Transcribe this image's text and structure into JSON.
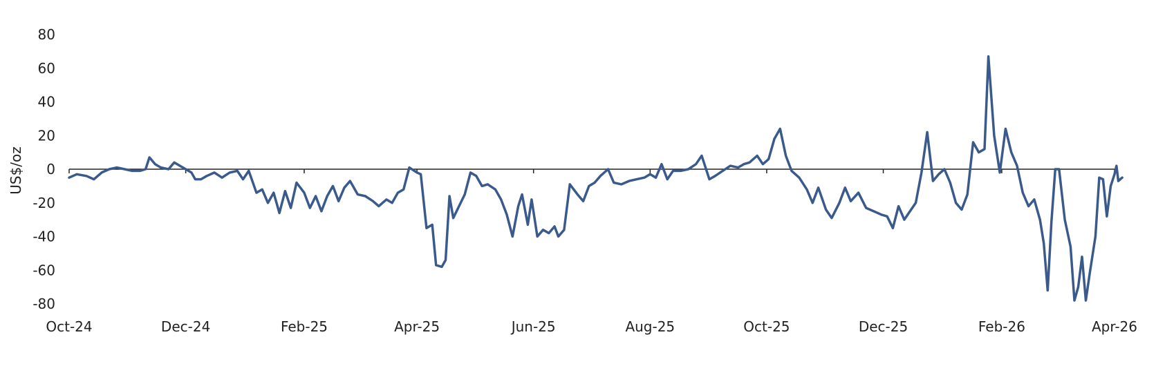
{
  "chart_data": {
    "type": "line",
    "title": "",
    "xlabel": "",
    "ylabel": "US$/oz",
    "ylim": [
      -80,
      80
    ],
    "yticks": [
      80,
      60,
      40,
      20,
      0,
      -20,
      -40,
      -60,
      -80
    ],
    "xlim": [
      "2024-10-01",
      "2026-04-01"
    ],
    "xticks": [
      {
        "date": "2024-10-01",
        "label": "Oct-24"
      },
      {
        "date": "2024-12-01",
        "label": "Dec-24"
      },
      {
        "date": "2025-02-01",
        "label": "Feb-25"
      },
      {
        "date": "2025-04-01",
        "label": "Apr-25"
      },
      {
        "date": "2025-06-01",
        "label": "Jun-25"
      },
      {
        "date": "2025-08-01",
        "label": "Aug-25"
      },
      {
        "date": "2025-10-01",
        "label": "Oct-25"
      },
      {
        "date": "2025-12-01",
        "label": "Dec-25"
      },
      {
        "date": "2026-02-01",
        "label": "Feb-26"
      },
      {
        "date": "2026-04-01",
        "label": "Apr-26"
      }
    ],
    "grid": false,
    "legend": "none",
    "line_color": "#3a5a8c",
    "zero_line_color": "#222222",
    "series": [
      {
        "points": [
          [
            "2024-10-01",
            -5
          ],
          [
            "2024-10-05",
            -3
          ],
          [
            "2024-10-10",
            -4
          ],
          [
            "2024-10-14",
            -6
          ],
          [
            "2024-10-18",
            -2
          ],
          [
            "2024-10-22",
            0
          ],
          [
            "2024-10-26",
            1
          ],
          [
            "2024-10-30",
            0
          ],
          [
            "2024-11-03",
            -1
          ],
          [
            "2024-11-07",
            -1
          ],
          [
            "2024-11-10",
            0
          ],
          [
            "2024-11-12",
            7
          ],
          [
            "2024-11-15",
            3
          ],
          [
            "2024-11-18",
            1
          ],
          [
            "2024-11-22",
            0
          ],
          [
            "2024-11-25",
            4
          ],
          [
            "2024-11-28",
            2
          ],
          [
            "2024-12-01",
            0
          ],
          [
            "2024-12-04",
            -2
          ],
          [
            "2024-12-06",
            -6
          ],
          [
            "2024-12-09",
            -6
          ],
          [
            "2024-12-12",
            -4
          ],
          [
            "2024-12-16",
            -2
          ],
          [
            "2024-12-20",
            -5
          ],
          [
            "2024-12-24",
            -2
          ],
          [
            "2024-12-28",
            -1
          ],
          [
            "2024-12-31",
            -6
          ],
          [
            "2025-01-03",
            -1
          ],
          [
            "2025-01-07",
            -14
          ],
          [
            "2025-01-10",
            -12
          ],
          [
            "2025-01-13",
            -20
          ],
          [
            "2025-01-16",
            -14
          ],
          [
            "2025-01-19",
            -26
          ],
          [
            "2025-01-22",
            -13
          ],
          [
            "2025-01-25",
            -23
          ],
          [
            "2025-01-28",
            -8
          ],
          [
            "2025-02-01",
            -14
          ],
          [
            "2025-02-04",
            -23
          ],
          [
            "2025-02-07",
            -16
          ],
          [
            "2025-02-10",
            -25
          ],
          [
            "2025-02-13",
            -16
          ],
          [
            "2025-02-16",
            -10
          ],
          [
            "2025-02-19",
            -19
          ],
          [
            "2025-02-22",
            -11
          ],
          [
            "2025-02-25",
            -7
          ],
          [
            "2025-03-01",
            -15
          ],
          [
            "2025-03-05",
            -16
          ],
          [
            "2025-03-09",
            -19
          ],
          [
            "2025-03-12",
            -22
          ],
          [
            "2025-03-16",
            -18
          ],
          [
            "2025-03-19",
            -20
          ],
          [
            "2025-03-22",
            -14
          ],
          [
            "2025-03-25",
            -12
          ],
          [
            "2025-03-28",
            1
          ],
          [
            "2025-04-01",
            -2
          ],
          [
            "2025-04-03",
            -3
          ],
          [
            "2025-04-06",
            -35
          ],
          [
            "2025-04-09",
            -33
          ],
          [
            "2025-04-11",
            -57
          ],
          [
            "2025-04-14",
            -58
          ],
          [
            "2025-04-16",
            -54
          ],
          [
            "2025-04-18",
            -16
          ],
          [
            "2025-04-20",
            -29
          ],
          [
            "2025-04-23",
            -22
          ],
          [
            "2025-04-26",
            -15
          ],
          [
            "2025-04-29",
            -2
          ],
          [
            "2025-05-02",
            -4
          ],
          [
            "2025-05-05",
            -10
          ],
          [
            "2025-05-08",
            -9
          ],
          [
            "2025-05-12",
            -12
          ],
          [
            "2025-05-15",
            -18
          ],
          [
            "2025-05-18",
            -27
          ],
          [
            "2025-05-21",
            -40
          ],
          [
            "2025-05-24",
            -22
          ],
          [
            "2025-05-26",
            -15
          ],
          [
            "2025-05-29",
            -33
          ],
          [
            "2025-05-31",
            -18
          ],
          [
            "2025-06-03",
            -40
          ],
          [
            "2025-06-06",
            -36
          ],
          [
            "2025-06-09",
            -38
          ],
          [
            "2025-06-12",
            -34
          ],
          [
            "2025-06-14",
            -40
          ],
          [
            "2025-06-17",
            -36
          ],
          [
            "2025-06-20",
            -9
          ],
          [
            "2025-06-24",
            -15
          ],
          [
            "2025-06-27",
            -19
          ],
          [
            "2025-06-30",
            -10
          ],
          [
            "2025-07-03",
            -8
          ],
          [
            "2025-07-06",
            -4
          ],
          [
            "2025-07-10",
            0
          ],
          [
            "2025-07-13",
            -8
          ],
          [
            "2025-07-17",
            -9
          ],
          [
            "2025-07-21",
            -7
          ],
          [
            "2025-07-25",
            -6
          ],
          [
            "2025-07-29",
            -5
          ],
          [
            "2025-08-01",
            -3
          ],
          [
            "2025-08-04",
            -5
          ],
          [
            "2025-08-07",
            3
          ],
          [
            "2025-08-10",
            -6
          ],
          [
            "2025-08-13",
            -1
          ],
          [
            "2025-08-17",
            -1
          ],
          [
            "2025-08-21",
            0
          ],
          [
            "2025-08-25",
            3
          ],
          [
            "2025-08-28",
            8
          ],
          [
            "2025-09-01",
            -6
          ],
          [
            "2025-09-04",
            -4
          ],
          [
            "2025-09-08",
            -1
          ],
          [
            "2025-09-12",
            2
          ],
          [
            "2025-09-16",
            1
          ],
          [
            "2025-09-19",
            3
          ],
          [
            "2025-09-22",
            4
          ],
          [
            "2025-09-26",
            8
          ],
          [
            "2025-09-29",
            3
          ],
          [
            "2025-10-02",
            6
          ],
          [
            "2025-10-05",
            18
          ],
          [
            "2025-10-08",
            24
          ],
          [
            "2025-10-11",
            8
          ],
          [
            "2025-10-14",
            -1
          ],
          [
            "2025-10-18",
            -5
          ],
          [
            "2025-10-22",
            -12
          ],
          [
            "2025-10-25",
            -20
          ],
          [
            "2025-10-28",
            -11
          ],
          [
            "2025-11-01",
            -24
          ],
          [
            "2025-11-04",
            -29
          ],
          [
            "2025-11-08",
            -20
          ],
          [
            "2025-11-11",
            -11
          ],
          [
            "2025-11-14",
            -19
          ],
          [
            "2025-11-18",
            -14
          ],
          [
            "2025-11-22",
            -23
          ],
          [
            "2025-11-26",
            -25
          ],
          [
            "2025-11-30",
            -27
          ],
          [
            "2025-12-03",
            -28
          ],
          [
            "2025-12-06",
            -35
          ],
          [
            "2025-12-09",
            -22
          ],
          [
            "2025-12-12",
            -30
          ],
          [
            "2025-12-15",
            -25
          ],
          [
            "2025-12-18",
            -20
          ],
          [
            "2025-12-21",
            -2
          ],
          [
            "2025-12-24",
            22
          ],
          [
            "2025-12-27",
            -7
          ],
          [
            "2025-12-30",
            -3
          ],
          [
            "2026-01-02",
            0
          ],
          [
            "2026-01-05",
            -8
          ],
          [
            "2026-01-08",
            -20
          ],
          [
            "2026-01-11",
            -24
          ],
          [
            "2026-01-14",
            -15
          ],
          [
            "2026-01-17",
            16
          ],
          [
            "2026-01-20",
            10
          ],
          [
            "2026-01-23",
            12
          ],
          [
            "2026-01-25",
            67
          ],
          [
            "2026-01-28",
            20
          ],
          [
            "2026-01-31",
            -2
          ],
          [
            "2026-02-03",
            24
          ],
          [
            "2026-02-06",
            10
          ],
          [
            "2026-02-09",
            2
          ],
          [
            "2026-02-12",
            -14
          ],
          [
            "2026-02-15",
            -22
          ],
          [
            "2026-02-18",
            -18
          ],
          [
            "2026-02-21",
            -30
          ],
          [
            "2026-02-23",
            -44
          ],
          [
            "2026-02-25",
            -72
          ],
          [
            "2026-02-27",
            -31
          ],
          [
            "2026-03-01",
            0
          ],
          [
            "2026-03-03",
            0
          ],
          [
            "2026-03-06",
            -30
          ],
          [
            "2026-03-09",
            -46
          ],
          [
            "2026-03-11",
            -78
          ],
          [
            "2026-03-13",
            -70
          ],
          [
            "2026-03-15",
            -52
          ],
          [
            "2026-03-17",
            -78
          ],
          [
            "2026-03-19",
            -62
          ],
          [
            "2026-03-22",
            -40
          ],
          [
            "2026-03-24",
            -5
          ],
          [
            "2026-03-26",
            -6
          ],
          [
            "2026-03-28",
            -28
          ],
          [
            "2026-03-30",
            -10
          ],
          [
            "2026-04-01",
            -3
          ],
          [
            "2026-04-02",
            2
          ],
          [
            "2026-04-03",
            -7
          ],
          [
            "2026-04-05",
            -5
          ]
        ]
      }
    ]
  }
}
